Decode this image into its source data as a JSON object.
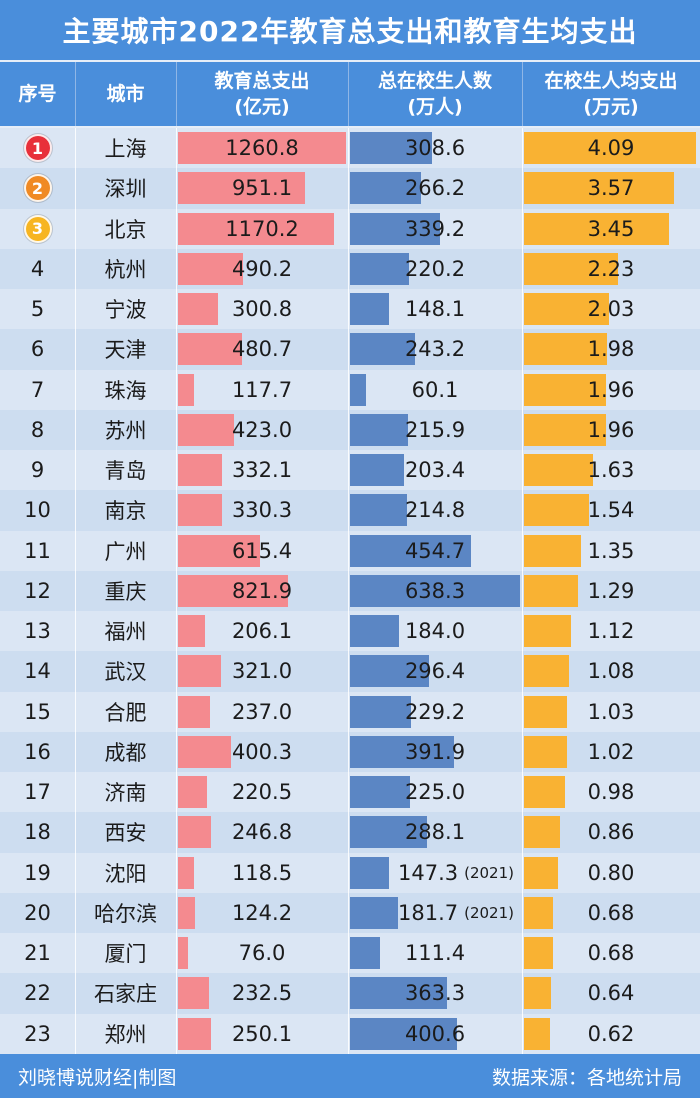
{
  "title": "主要城市2022年教育总支出和教育生均支出",
  "header": {
    "rank": "序号",
    "city": "城市",
    "expense_line1": "教育总支出",
    "expense_line2": "(亿元)",
    "students_line1": "总在校生人数",
    "students_line2": "(万人)",
    "per_line1": "在校生人均支出",
    "per_line2": "(万元)"
  },
  "colors": {
    "header_bg": "#4a8edb",
    "expense_bar": "#f48a8f",
    "students_bar": "#5b86c4",
    "per_bar": "#f9b233",
    "medal_1": "#e8303a",
    "medal_2": "#f08a24",
    "medal_3": "#f7b521"
  },
  "chart_data": {
    "type": "table",
    "title": "主要城市2022年教育总支出和教育生均支出",
    "columns": [
      "序号",
      "城市",
      "教育总支出(亿元)",
      "总在校生人数(万人)",
      "在校生人均支出(万元)"
    ],
    "rows": [
      {
        "rank": "1",
        "city": "上海",
        "expense": "1260.8",
        "students": "308.6",
        "students_note": "",
        "per_student": "4.09"
      },
      {
        "rank": "2",
        "city": "深圳",
        "expense": "951.1",
        "students": "266.2",
        "students_note": "",
        "per_student": "3.57"
      },
      {
        "rank": "3",
        "city": "北京",
        "expense": "1170.2",
        "students": "339.2",
        "students_note": "",
        "per_student": "3.45"
      },
      {
        "rank": "4",
        "city": "杭州",
        "expense": "490.2",
        "students": "220.2",
        "students_note": "",
        "per_student": "2.23"
      },
      {
        "rank": "5",
        "city": "宁波",
        "expense": "300.8",
        "students": "148.1",
        "students_note": "",
        "per_student": "2.03"
      },
      {
        "rank": "6",
        "city": "天津",
        "expense": "480.7",
        "students": "243.2",
        "students_note": "",
        "per_student": "1.98"
      },
      {
        "rank": "7",
        "city": "珠海",
        "expense": "117.7",
        "students": "60.1",
        "students_note": "",
        "per_student": "1.96"
      },
      {
        "rank": "8",
        "city": "苏州",
        "expense": "423.0",
        "students": "215.9",
        "students_note": "",
        "per_student": "1.96"
      },
      {
        "rank": "9",
        "city": "青岛",
        "expense": "332.1",
        "students": "203.4",
        "students_note": "",
        "per_student": "1.63"
      },
      {
        "rank": "10",
        "city": "南京",
        "expense": "330.3",
        "students": "214.8",
        "students_note": "",
        "per_student": "1.54"
      },
      {
        "rank": "11",
        "city": "广州",
        "expense": "615.4",
        "students": "454.7",
        "students_note": "",
        "per_student": "1.35"
      },
      {
        "rank": "12",
        "city": "重庆",
        "expense": "821.9",
        "students": "638.3",
        "students_note": "",
        "per_student": "1.29"
      },
      {
        "rank": "13",
        "city": "福州",
        "expense": "206.1",
        "students": "184.0",
        "students_note": "",
        "per_student": "1.12"
      },
      {
        "rank": "14",
        "city": "武汉",
        "expense": "321.0",
        "students": "296.4",
        "students_note": "",
        "per_student": "1.08"
      },
      {
        "rank": "15",
        "city": "合肥",
        "expense": "237.0",
        "students": "229.2",
        "students_note": "",
        "per_student": "1.03"
      },
      {
        "rank": "16",
        "city": "成都",
        "expense": "400.3",
        "students": "391.9",
        "students_note": "",
        "per_student": "1.02"
      },
      {
        "rank": "17",
        "city": "济南",
        "expense": "220.5",
        "students": "225.0",
        "students_note": "",
        "per_student": "0.98"
      },
      {
        "rank": "18",
        "city": "西安",
        "expense": "246.8",
        "students": "288.1",
        "students_note": "",
        "per_student": "0.86"
      },
      {
        "rank": "19",
        "city": "沈阳",
        "expense": "118.5",
        "students": "147.3",
        "students_note": "(2021)",
        "per_student": "0.80"
      },
      {
        "rank": "20",
        "city": "哈尔滨",
        "expense": "124.2",
        "students": "181.7",
        "students_note": "(2021)",
        "per_student": "0.68"
      },
      {
        "rank": "21",
        "city": "厦门",
        "expense": "76.0",
        "students": "111.4",
        "students_note": "",
        "per_student": "0.68"
      },
      {
        "rank": "22",
        "city": "石家庄",
        "expense": "232.5",
        "students": "363.3",
        "students_note": "",
        "per_student": "0.64"
      },
      {
        "rank": "23",
        "city": "郑州",
        "expense": "250.1",
        "students": "400.6",
        "students_note": "",
        "per_student": "0.62"
      }
    ]
  },
  "footer": {
    "left": "刘晓博说财经|制图",
    "right": "数据来源：各地统计局"
  }
}
